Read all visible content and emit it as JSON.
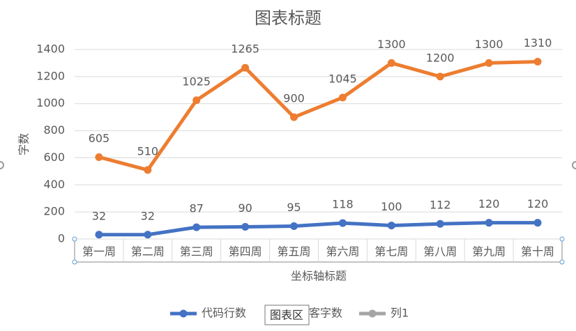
{
  "chart_data": {
    "type": "line",
    "title": "图表标题",
    "x_label": "坐标轴标题",
    "y_label": "字数",
    "categories": [
      "第一周",
      "第二周",
      "第三周",
      "第四周",
      "第五周",
      "第六周",
      "第七周",
      "第八周",
      "第九周",
      "第十周"
    ],
    "series": [
      {
        "name": "代码行数",
        "color": "#4472c4",
        "values": [
          32,
          32,
          87,
          90,
          95,
          118,
          100,
          112,
          120,
          120
        ]
      },
      {
        "name": "博客字数",
        "color": "#ed7d31",
        "values": [
          605,
          510,
          1025,
          1265,
          900,
          1045,
          1300,
          1200,
          1300,
          1310
        ]
      },
      {
        "name": "列1",
        "color": "#a5a5a5",
        "values": [
          null,
          null,
          null,
          null,
          null,
          null,
          null,
          null,
          null,
          null
        ]
      }
    ],
    "ylim": [
      0,
      1400
    ],
    "yticks": [
      0,
      200,
      400,
      600,
      800,
      1000,
      1200,
      1400
    ],
    "grid": true,
    "legend": "bottom",
    "tooltip": "图表区"
  }
}
